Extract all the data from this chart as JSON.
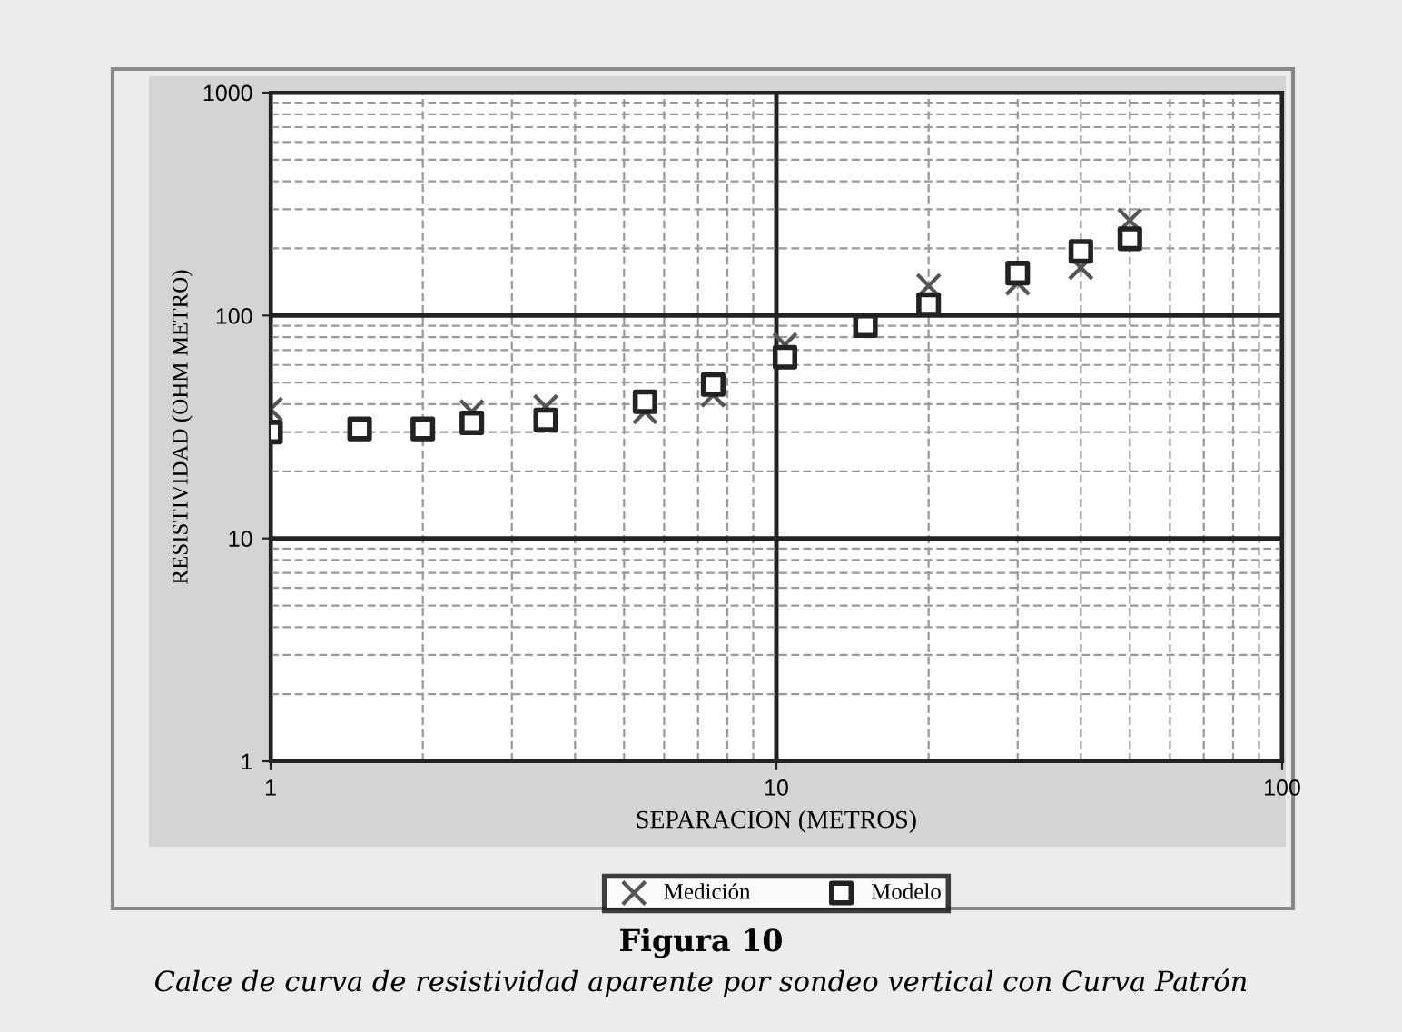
{
  "chart_data": {
    "type": "scatter",
    "xlabel": "SEPARACION (METROS)",
    "ylabel": "RESISTIVIDAD (OHM METRO)",
    "log": "xy",
    "xlim": [
      1,
      100
    ],
    "ylim": [
      1,
      1000
    ],
    "xticks": [
      1,
      10,
      100
    ],
    "yticks": [
      1,
      10,
      100,
      1000
    ],
    "grid": true,
    "legend": "bottom",
    "series": [
      {
        "name": "Medición",
        "color": "#555555",
        "marker": "cross",
        "x": [
          1,
          1.5,
          2,
          2.5,
          3.5,
          5.5,
          7.5,
          10.4,
          15,
          20,
          30,
          40,
          50
        ],
        "values": [
          38,
          null,
          null,
          37,
          39,
          37,
          44,
          74,
          null,
          136,
          140,
          164,
          267
        ]
      },
      {
        "name": "Modelo",
        "color": "#222222",
        "marker": "square",
        "x": [
          1,
          1.5,
          2,
          2.5,
          3.5,
          5.5,
          7.5,
          10.4,
          15,
          20,
          30,
          40,
          50
        ],
        "values": [
          30,
          31,
          31,
          33,
          34,
          41,
          49,
          65,
          90,
          112,
          155,
          194,
          221
        ]
      }
    ],
    "annotations": [
      "Figura 10",
      "Calce de curva de resistividad aparente por sondeo vertical con Curva Patrón"
    ]
  }
}
